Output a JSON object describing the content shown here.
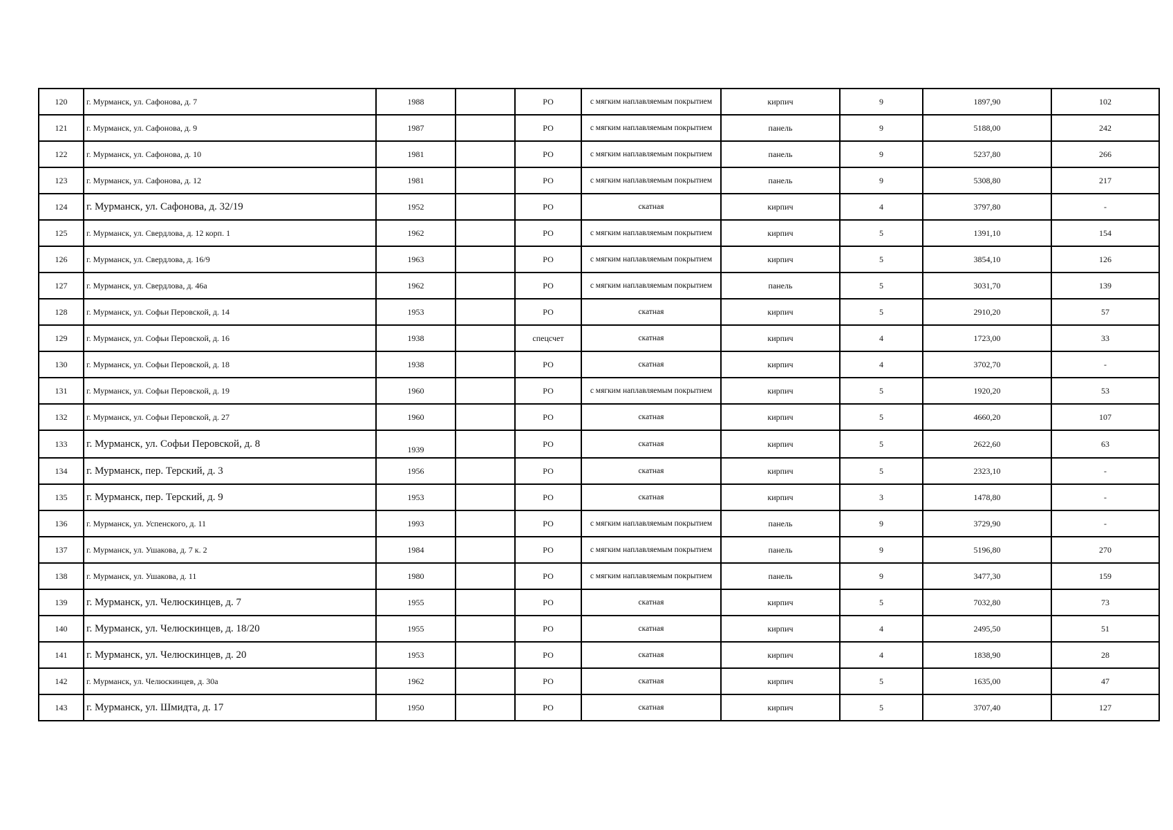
{
  "rows": [
    {
      "n": "120",
      "address": "г. Мурманск, ул. Сафонова, д. 7",
      "year": "1988",
      "extra": "",
      "account": "РО",
      "roof": "с мягким наплавляемым покрытием",
      "material": "кирпич",
      "floors": "9",
      "area": "1897,90",
      "count": "102"
    },
    {
      "n": "121",
      "address": "г. Мурманск, ул. Сафонова, д. 9",
      "year": "1987",
      "extra": "",
      "account": "РО",
      "roof": "с мягким наплавляемым покрытием",
      "material": "панель",
      "floors": "9",
      "area": "5188,00",
      "count": "242"
    },
    {
      "n": "122",
      "address": "г. Мурманск, ул. Сафонова, д. 10",
      "year": "1981",
      "extra": "",
      "account": "РО",
      "roof": "с мягким наплавляемым покрытием",
      "material": "панель",
      "floors": "9",
      "area": "5237,80",
      "count": "266"
    },
    {
      "n": "123",
      "address": "г. Мурманск, ул. Сафонова, д. 12",
      "year": "1981",
      "extra": "",
      "account": "РО",
      "roof": "с мягким наплавляемым покрытием",
      "material": "панель",
      "floors": "9",
      "area": "5308,80",
      "count": "217"
    },
    {
      "n": "124",
      "address": "г. Мурманск, ул. Сафонова, д. 32/19",
      "year": "1952",
      "extra": "",
      "account": "РО",
      "roof": "скатная",
      "material": "кирпич",
      "floors": "4",
      "area": "3797,80",
      "count": "-"
    },
    {
      "n": "125",
      "address": "г. Мурманск, ул. Свердлова, д. 12 корп. 1",
      "year": "1962",
      "extra": "",
      "account": "РО",
      "roof": "с мягким наплавляемым покрытием",
      "material": "кирпич",
      "floors": "5",
      "area": "1391,10",
      "count": "154"
    },
    {
      "n": "126",
      "address": "г. Мурманск, ул. Свердлова, д. 16/9",
      "year": "1963",
      "extra": "",
      "account": "РО",
      "roof": "с мягким наплавляемым покрытием",
      "material": "кирпич",
      "floors": "5",
      "area": "3854,10",
      "count": "126"
    },
    {
      "n": "127",
      "address": "г. Мурманск, ул. Свердлова, д. 46а",
      "year": "1962",
      "extra": "",
      "account": "РО",
      "roof": "с мягким наплавляемым покрытием",
      "material": "панель",
      "floors": "5",
      "area": "3031,70",
      "count": "139"
    },
    {
      "n": "128",
      "address": "г. Мурманск, ул. Софьи Перовской, д. 14",
      "year": "1953",
      "extra": "",
      "account": "РО",
      "roof": "скатная",
      "material": "кирпич",
      "floors": "5",
      "area": "2910,20",
      "count": "57"
    },
    {
      "n": "129",
      "address": "г. Мурманск, ул. Софьи Перовской, д. 16",
      "year": "1938",
      "extra": "",
      "account": "спецсчет",
      "roof": "скатная",
      "material": "кирпич",
      "floors": "4",
      "area": "1723,00",
      "count": "33"
    },
    {
      "n": "130",
      "address": "г. Мурманск, ул. Софьи Перовской, д. 18",
      "year": "1938",
      "extra": "",
      "account": "РО",
      "roof": "скатная",
      "material": "кирпич",
      "floors": "4",
      "area": "3702,70",
      "count": "-"
    },
    {
      "n": "131",
      "address": "г. Мурманск, ул. Софьи Перовской, д. 19",
      "year": "1960",
      "extra": "",
      "account": "РО",
      "roof": "с мягким наплавляемым покрытием",
      "material": "кирпич",
      "floors": "5",
      "area": "1920,20",
      "count": "53"
    },
    {
      "n": "132",
      "address": "г. Мурманск, ул. Софьи Перовской, д. 27",
      "year": "1960",
      "extra": "",
      "account": "РО",
      "roof": "скатная",
      "material": "кирпич",
      "floors": "5",
      "area": "4660,20",
      "count": "107"
    },
    {
      "n": "133",
      "address": "г. Мурманск, ул. Софьи Перовской, д. 8",
      "year": "1939",
      "extra": "",
      "account": "РО",
      "roof": "скатная",
      "material": "кирпич",
      "floors": "5",
      "area": "2622,60",
      "count": "63"
    },
    {
      "n": "134",
      "address": "г. Мурманск, пер. Терский, д. 3",
      "year": "1956",
      "extra": "",
      "account": "РО",
      "roof": "скатная",
      "material": "кирпич",
      "floors": "5",
      "area": "2323,10",
      "count": "-"
    },
    {
      "n": "135",
      "address": "г. Мурманск, пер. Терский, д. 9",
      "year": "1953",
      "extra": "",
      "account": "РО",
      "roof": "скатная",
      "material": "кирпич",
      "floors": "3",
      "area": "1478,80",
      "count": "-"
    },
    {
      "n": "136",
      "address": "г. Мурманск, ул. Успенского, д. 11",
      "year": "1993",
      "extra": "",
      "account": "РО",
      "roof": "с мягким наплавляемым покрытием",
      "material": "панель",
      "floors": "9",
      "area": "3729,90",
      "count": "-"
    },
    {
      "n": "137",
      "address": "г. Мурманск, ул. Ушакова, д. 7 к. 2",
      "year": "1984",
      "extra": "",
      "account": "РО",
      "roof": "с мягким наплавляемым покрытием",
      "material": "панель",
      "floors": "9",
      "area": "5196,80",
      "count": "270"
    },
    {
      "n": "138",
      "address": "г. Мурманск, ул. Ушакова, д. 11",
      "year": "1980",
      "extra": "",
      "account": "РО",
      "roof": "с мягким наплавляемым покрытием",
      "material": "панель",
      "floors": "9",
      "area": "3477,30",
      "count": "159"
    },
    {
      "n": "139",
      "address": "г. Мурманск, ул. Челюскинцев, д. 7",
      "year": "1955",
      "extra": "",
      "account": "РО",
      "roof": "скатная",
      "material": "кирпич",
      "floors": "5",
      "area": "7032,80",
      "count": "73"
    },
    {
      "n": "140",
      "address": "г. Мурманск, ул. Челюскинцев, д. 18/20",
      "year": "1955",
      "extra": "",
      "account": "РО",
      "roof": "скатная",
      "material": "кирпич",
      "floors": "4",
      "area": "2495,50",
      "count": "51"
    },
    {
      "n": "141",
      "address": "г. Мурманск, ул. Челюскинцев, д. 20",
      "year": "1953",
      "extra": "",
      "account": "РО",
      "roof": "скатная",
      "material": "кирпич",
      "floors": "4",
      "area": "1838,90",
      "count": "28"
    },
    {
      "n": "142",
      "address": "г. Мурманск, ул. Челюскинцев, д. 30а",
      "year": "1962",
      "extra": "",
      "account": "РО",
      "roof": "скатная",
      "material": "кирпич",
      "floors": "5",
      "area": "1635,00",
      "count": "47"
    },
    {
      "n": "143",
      "address": "г. Мурманск, ул. Шмидта, д. 17",
      "year": "1950",
      "extra": "",
      "account": "РО",
      "roof": "скатная",
      "material": "кирпич",
      "floors": "5",
      "area": "3707,40",
      "count": "127"
    }
  ]
}
